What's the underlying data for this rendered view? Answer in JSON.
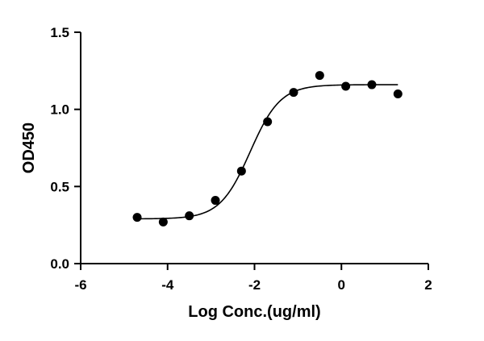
{
  "chart_data": {
    "type": "scatter",
    "title": "",
    "xlabel": "Log Conc.(ug/ml)",
    "ylabel": "OD450",
    "xlim": [
      -6,
      2
    ],
    "ylim": [
      0.0,
      1.5
    ],
    "x_ticks": [
      -6,
      -4,
      -2,
      0,
      2
    ],
    "x_tick_labels": [
      "-6",
      "-4",
      "-2",
      "0",
      "2"
    ],
    "y_ticks": [
      0.0,
      0.5,
      1.0,
      1.5
    ],
    "y_tick_labels": [
      "0.0",
      "0.5",
      "1.0",
      "1.5"
    ],
    "grid": false,
    "legend": "none",
    "colors": {
      "points": "#000000",
      "curve": "#000000",
      "axes": "#000000"
    },
    "series": [
      {
        "x": [
          -4.7,
          -4.1,
          -3.5,
          -2.9,
          -2.3,
          -1.7,
          -1.1,
          -0.5,
          0.1,
          0.7,
          1.3
        ],
        "y": [
          0.3,
          0.27,
          0.31,
          0.41,
          0.6,
          0.92,
          1.11,
          1.22,
          1.15,
          1.16,
          1.1
        ]
      }
    ],
    "fit": {
      "model": "4PL sigmoid",
      "bottom": 0.29,
      "top": 1.16,
      "log_ec50": -2.1,
      "hill_slope": 1.25
    }
  }
}
